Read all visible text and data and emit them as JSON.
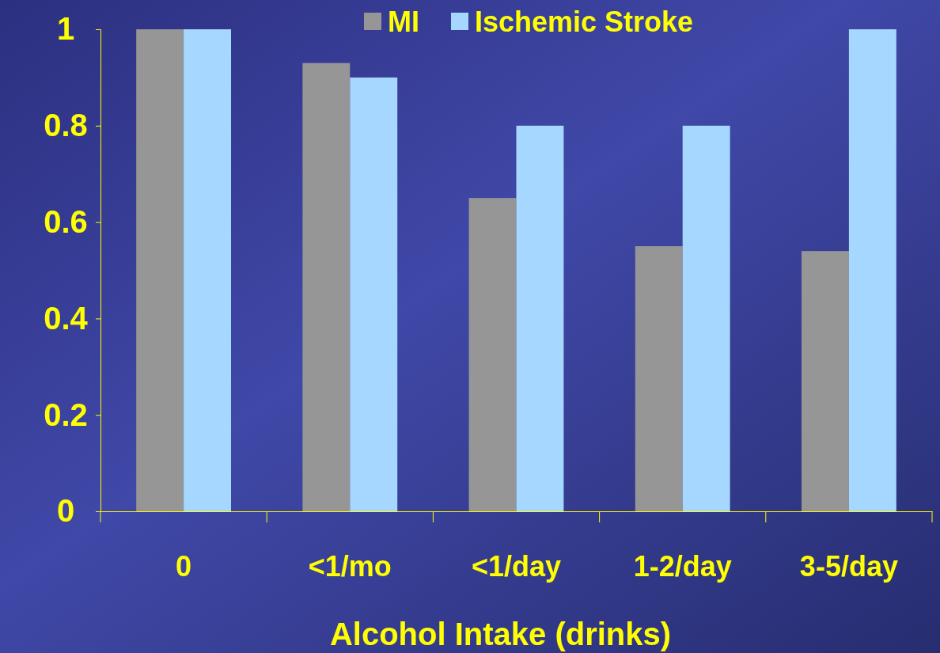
{
  "chart_data": {
    "type": "bar",
    "xlabel": "Alcohol Intake (drinks)",
    "categories": [
      "0",
      "<1/mo",
      "<1/day",
      "1-2/day",
      "3-5/day"
    ],
    "series": [
      {
        "name": "MI",
        "color": "#969696",
        "values": [
          1,
          0.93,
          0.65,
          0.55,
          0.54
        ]
      },
      {
        "name": "Ischemic Stroke",
        "color": "#a6d8ff",
        "values": [
          1,
          0.9,
          0.8,
          0.8,
          1
        ]
      }
    ],
    "ylim": [
      0,
      1
    ],
    "yticks": [
      0,
      0.2,
      0.4,
      0.6,
      0.8,
      1
    ],
    "grid": false,
    "legend": "top"
  }
}
